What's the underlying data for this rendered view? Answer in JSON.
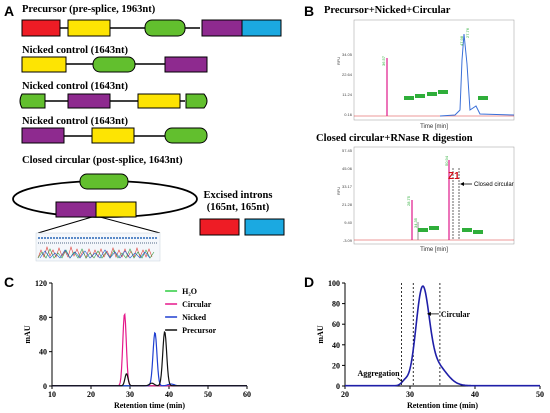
{
  "panels": {
    "A": {
      "letter": "A",
      "precursor_title": "Precursor (pre-splice, 1963nt)",
      "nicked1_title": "Nicked control (1643nt)",
      "nicked2_title": "Nicked control (1643nt)",
      "nicked3_title": "Nicked control (1643nt)",
      "circular_title": "Closed circular (post-splice, 1643nt)",
      "introns_title_line1": "Excised introns",
      "introns_title_line2": "(165nt, 165nt)"
    },
    "B": {
      "letter": "B",
      "top_title": "Precursor+Nicked+Circular",
      "bottom_title": "Closed circular+RNase R digestion",
      "top_xlabel": "Time [min]",
      "bottom_xlabel": "Time [min]",
      "ylabel": "RFU",
      "top_peak_labels": [
        "36.57",
        "47.98",
        "27.76"
      ],
      "top_yticks": [
        "34.05",
        "22.64",
        "11.24",
        "0.16"
      ],
      "bottom_yticks": [
        "57.45",
        "45.06",
        "33.17",
        "21.28",
        "9.40",
        "-3.09"
      ],
      "bottom_peak_labels": [
        "28.75",
        "34.35",
        "50.94"
      ],
      "z1_label": "Z1",
      "closed_circular_label": "Closed circular"
    },
    "C": {
      "letter": "C"
    },
    "D": {
      "letter": "D"
    }
  },
  "colors": {
    "red": "#ee1c25",
    "cyan": "#1ba9e1",
    "yellow": "#fde403",
    "green": "#62bf2e",
    "purple": "#8e2a8f"
  },
  "chart_data": [
    {
      "type": "line",
      "panel": "C",
      "xlabel": "Retention time (min)",
      "ylabel": "mAU",
      "xlim": [
        10,
        60
      ],
      "ylim": [
        0,
        120
      ],
      "xticks": [
        10,
        20,
        30,
        40,
        50,
        60
      ],
      "yticks": [
        0,
        40,
        80,
        120
      ],
      "legend": "top-right",
      "series": [
        {
          "name": "H₂O",
          "color": "#2ecc40",
          "peaks": []
        },
        {
          "name": "Circular",
          "color": "#e5188a",
          "peaks": [
            [
              28.6,
              84,
              0.45
            ]
          ]
        },
        {
          "name": "Nicked",
          "color": "#1f3fd0",
          "peaks": [
            [
              36.4,
              62,
              0.5
            ],
            [
              40.5,
              2,
              0.8
            ]
          ]
        },
        {
          "name": "Precursor",
          "color": "#111111",
          "peaks": [
            [
              29.1,
              14,
              0.4
            ],
            [
              38.9,
              63,
              0.5
            ],
            [
              35.6,
              3,
              0.6
            ]
          ]
        }
      ]
    },
    {
      "type": "line",
      "panel": "D",
      "xlabel": "Retention time (min)",
      "ylabel": "mAU",
      "xlim": [
        20,
        50
      ],
      "ylim": [
        0,
        100
      ],
      "xticks": [
        20,
        30,
        40,
        50
      ],
      "yticks": [
        0,
        20,
        40,
        60,
        80,
        100
      ],
      "annotations": [
        {
          "text": "Circular",
          "x": 32.6,
          "y": 70
        },
        {
          "text": "Aggregation",
          "x": 29,
          "y": 6
        }
      ],
      "vlines": [
        28.7,
        30.5,
        34.6
      ],
      "series": [
        {
          "name": "",
          "color": "#1f1fa8",
          "peaks": [
            [
              31.9,
              88,
              1.0
            ],
            [
              34.0,
              20,
              1.6
            ],
            [
              29.2,
              4,
              0.5
            ]
          ]
        }
      ]
    }
  ]
}
